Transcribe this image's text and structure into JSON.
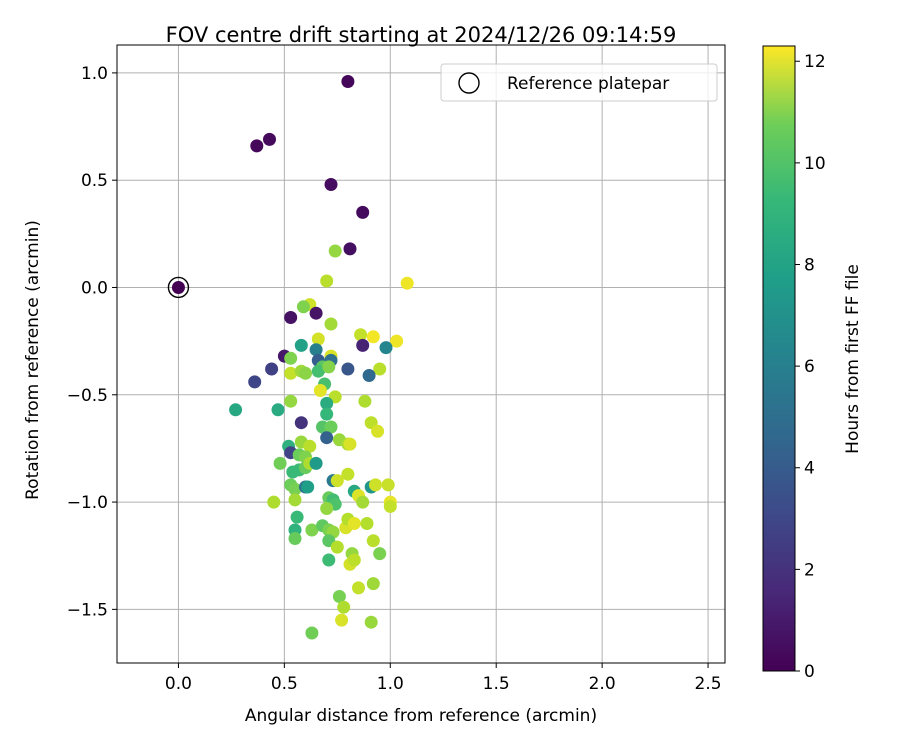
{
  "chart_data": {
    "type": "scatter",
    "title": "FOV centre drift starting at 2024/12/26 09:14:59",
    "xlabel": "Angular distance from reference (arcmin)",
    "ylabel": "Rotation from reference (arcmin)",
    "xlim": [
      -0.29,
      2.58
    ],
    "ylim": [
      -1.75,
      1.13
    ],
    "xticks": [
      0.0,
      0.5,
      1.0,
      1.5,
      2.0,
      2.5
    ],
    "xtick_labels": [
      "0.0",
      "0.5",
      "1.0",
      "1.5",
      "2.0",
      "2.5"
    ],
    "yticks": [
      -1.5,
      -1.0,
      -0.5,
      0.0,
      0.5,
      1.0
    ],
    "ytick_labels": [
      "−1.5",
      "−1.0",
      "−0.5",
      "0.0",
      "0.5",
      "1.0"
    ],
    "grid": true,
    "legend": {
      "placement": "top-right",
      "entries": [
        "Reference platepar"
      ]
    },
    "reference_point": {
      "x": 0.0,
      "y": 0.0,
      "color_value": 0
    },
    "colorbar": {
      "label": "Hours from first FF file",
      "colormap": "viridis",
      "range": [
        0,
        12.3
      ],
      "ticks": [
        0,
        2,
        4,
        6,
        8,
        10,
        12
      ],
      "tick_labels": [
        "0",
        "2",
        "4",
        "6",
        "8",
        "10",
        "12"
      ]
    },
    "series": [
      {
        "color_by": "hours",
        "points": [
          [
            0.8,
            0.96,
            0.2
          ],
          [
            0.43,
            0.69,
            0.3
          ],
          [
            0.37,
            0.66,
            0.2
          ],
          [
            0.72,
            0.48,
            0.4
          ],
          [
            0.87,
            0.35,
            0.3
          ],
          [
            0.81,
            0.18,
            0.5
          ],
          [
            0.74,
            0.17,
            10.3
          ],
          [
            0.7,
            0.03,
            11.0
          ],
          [
            1.08,
            0.02,
            12.0
          ],
          [
            0.62,
            -0.08,
            11.4
          ],
          [
            0.59,
            -0.09,
            9.9
          ],
          [
            0.53,
            -0.14,
            0.6
          ],
          [
            0.65,
            -0.12,
            0.7
          ],
          [
            0.72,
            -0.17,
            10.6
          ],
          [
            0.86,
            -0.22,
            11.2
          ],
          [
            0.92,
            -0.23,
            12.1
          ],
          [
            1.03,
            -0.25,
            12.0
          ],
          [
            0.66,
            -0.24,
            11.5
          ],
          [
            0.87,
            -0.27,
            1.2
          ],
          [
            0.98,
            -0.28,
            5.6
          ],
          [
            0.58,
            -0.27,
            7.0
          ],
          [
            0.65,
            -0.29,
            5.3
          ],
          [
            0.5,
            -0.32,
            0.8
          ],
          [
            0.53,
            -0.33,
            9.9
          ],
          [
            0.66,
            -0.34,
            3.6
          ],
          [
            0.72,
            -0.32,
            11.6
          ],
          [
            0.72,
            -0.34,
            4.5
          ],
          [
            0.68,
            -0.37,
            9.1
          ],
          [
            0.8,
            -0.38,
            3.3
          ],
          [
            0.95,
            -0.38,
            11.0
          ],
          [
            0.53,
            -0.4,
            11.2
          ],
          [
            0.58,
            -0.39,
            10.5
          ],
          [
            0.6,
            -0.4,
            10.1
          ],
          [
            0.66,
            -0.39,
            8.6
          ],
          [
            0.71,
            -0.37,
            10.0
          ],
          [
            0.44,
            -0.38,
            2.4
          ],
          [
            0.36,
            -0.44,
            2.6
          ],
          [
            0.9,
            -0.41,
            4.2
          ],
          [
            0.69,
            -0.45,
            8.7
          ],
          [
            0.67,
            -0.48,
            11.8
          ],
          [
            0.74,
            -0.51,
            11.0
          ],
          [
            0.53,
            -0.53,
            10.3
          ],
          [
            0.7,
            -0.54,
            7.6
          ],
          [
            0.27,
            -0.57,
            7.4
          ],
          [
            0.47,
            -0.57,
            7.5
          ],
          [
            0.88,
            -0.53,
            10.8
          ],
          [
            0.7,
            -0.59,
            8.2
          ],
          [
            0.58,
            -0.63,
            1.8
          ],
          [
            0.68,
            -0.65,
            9.0
          ],
          [
            0.72,
            -0.65,
            9.5
          ],
          [
            0.91,
            -0.63,
            11.1
          ],
          [
            0.94,
            -0.67,
            11.6
          ],
          [
            0.7,
            -0.7,
            3.8
          ],
          [
            0.58,
            -0.72,
            10.4
          ],
          [
            0.62,
            -0.74,
            11.0
          ],
          [
            0.76,
            -0.71,
            10.4
          ],
          [
            0.8,
            -0.73,
            10.7
          ],
          [
            0.81,
            -0.73,
            11.6
          ],
          [
            0.52,
            -0.74,
            7.8
          ],
          [
            0.53,
            -0.77,
            2.5
          ],
          [
            0.57,
            -0.78,
            9.5
          ],
          [
            0.6,
            -0.79,
            9.9
          ],
          [
            0.48,
            -0.82,
            9.6
          ],
          [
            0.57,
            -0.85,
            8.4
          ],
          [
            0.6,
            -0.84,
            9.4
          ],
          [
            0.62,
            -0.82,
            10.8
          ],
          [
            0.65,
            -0.82,
            6.7
          ],
          [
            0.54,
            -0.86,
            8.3
          ],
          [
            0.8,
            -0.87,
            11.2
          ],
          [
            0.73,
            -0.9,
            5.0
          ],
          [
            0.75,
            -0.9,
            11.4
          ],
          [
            0.53,
            -0.92,
            9.5
          ],
          [
            0.55,
            -0.94,
            9.7
          ],
          [
            0.6,
            -0.93,
            4.6
          ],
          [
            0.61,
            -0.93,
            6.9
          ],
          [
            0.83,
            -0.95,
            7.4
          ],
          [
            0.85,
            -0.97,
            11.7
          ],
          [
            0.91,
            -0.93,
            6.4
          ],
          [
            0.93,
            -0.92,
            11.4
          ],
          [
            0.99,
            -0.92,
            11.3
          ],
          [
            0.45,
            -1.0,
            10.8
          ],
          [
            0.55,
            -0.99,
            10.6
          ],
          [
            0.71,
            -0.98,
            9.4
          ],
          [
            0.73,
            -0.99,
            8.5
          ],
          [
            0.74,
            -1.01,
            8.8
          ],
          [
            0.7,
            -1.03,
            10.3
          ],
          [
            0.87,
            -1.0,
            10.6
          ],
          [
            1.0,
            -1.0,
            11.9
          ],
          [
            1.0,
            -1.02,
            11.2
          ],
          [
            0.56,
            -1.07,
            8.3
          ],
          [
            0.55,
            -1.13,
            7.9
          ],
          [
            0.55,
            -1.17,
            9.4
          ],
          [
            0.63,
            -1.13,
            9.9
          ],
          [
            0.68,
            -1.11,
            9.2
          ],
          [
            0.71,
            -1.13,
            9.8
          ],
          [
            0.73,
            -1.14,
            10.3
          ],
          [
            0.79,
            -1.12,
            11.6
          ],
          [
            0.8,
            -1.08,
            10.9
          ],
          [
            0.83,
            -1.1,
            11.8
          ],
          [
            0.89,
            -1.1,
            10.9
          ],
          [
            0.71,
            -1.18,
            9.1
          ],
          [
            0.75,
            -1.21,
            10.9
          ],
          [
            0.82,
            -1.24,
            10.3
          ],
          [
            0.81,
            -1.29,
            11.5
          ],
          [
            0.83,
            -1.27,
            11.1
          ],
          [
            0.71,
            -1.27,
            8.4
          ],
          [
            0.92,
            -1.18,
            11.0
          ],
          [
            0.95,
            -1.24,
            9.8
          ],
          [
            0.85,
            -1.4,
            11.2
          ],
          [
            0.92,
            -1.38,
            10.5
          ],
          [
            0.76,
            -1.44,
            9.7
          ],
          [
            0.78,
            -1.49,
            10.8
          ],
          [
            0.77,
            -1.55,
            11.6
          ],
          [
            0.91,
            -1.56,
            10.4
          ],
          [
            0.63,
            -1.61,
            9.6
          ]
        ]
      }
    ]
  }
}
